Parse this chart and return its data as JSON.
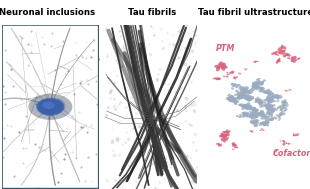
{
  "title_1": "Neuronal inclusions",
  "title_2": "Tau fibrils",
  "title_3": "Tau fibril ultrastructure",
  "label_ptm": "PTM",
  "label_cofactor": "Cofactor",
  "bg_color": "#ffffff",
  "title_fontsize": 6.2,
  "panel1_bg": "#0a0a0a",
  "panel1_border": "#3a5a6a",
  "panel2_bg": "#b8bdb5",
  "tau_color": "#9AAABF",
  "ptm_color": "#d9607a",
  "neuron_body_color": "#3a5faa",
  "neuron_glow": "#6688bb"
}
